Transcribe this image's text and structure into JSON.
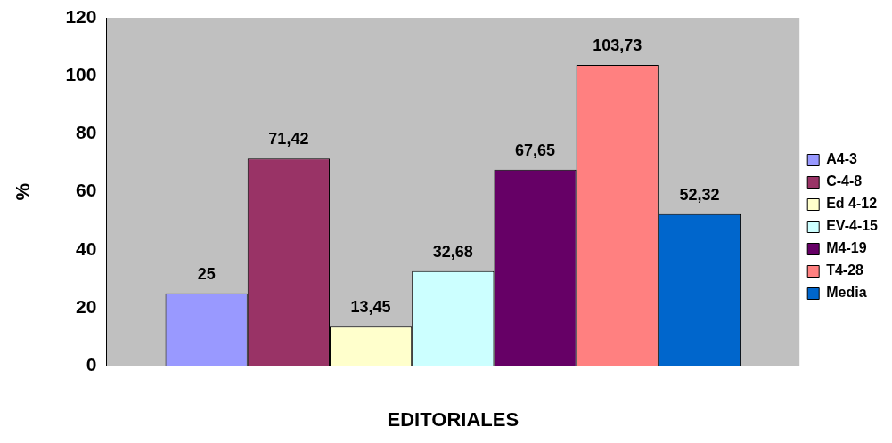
{
  "chart_data": {
    "type": "bar",
    "xlabel": "EDITORIALES",
    "ylabel": "%",
    "categories": [
      null
    ],
    "series": [
      {
        "name": "A4-3",
        "color": "#9999ff",
        "values": [
          25
        ],
        "value_labels": [
          "25"
        ]
      },
      {
        "name": "C-4-8",
        "color": "#993366",
        "values": [
          71.42
        ],
        "value_labels": [
          "71,42"
        ]
      },
      {
        "name": "Ed 4-12",
        "color": "#ffffcc",
        "values": [
          13.45
        ],
        "value_labels": [
          "13,45"
        ]
      },
      {
        "name": "EV-4-15",
        "color": "#ccffff",
        "values": [
          32.68
        ],
        "value_labels": [
          "32,68"
        ]
      },
      {
        "name": "M4-19",
        "color": "#660066",
        "values": [
          67.65
        ],
        "value_labels": [
          "67,65"
        ]
      },
      {
        "name": "T4-28",
        "color": "#ff8080",
        "values": [
          103.73
        ],
        "value_labels": [
          "103,73"
        ]
      },
      {
        "name": "Media",
        "color": "#0066cc",
        "values": [
          52.32
        ],
        "value_labels": [
          "52,32"
        ]
      }
    ],
    "ylim": [
      0,
      120
    ],
    "yticks": [
      0,
      20,
      40,
      60,
      80,
      100,
      120
    ],
    "legend": "right"
  }
}
